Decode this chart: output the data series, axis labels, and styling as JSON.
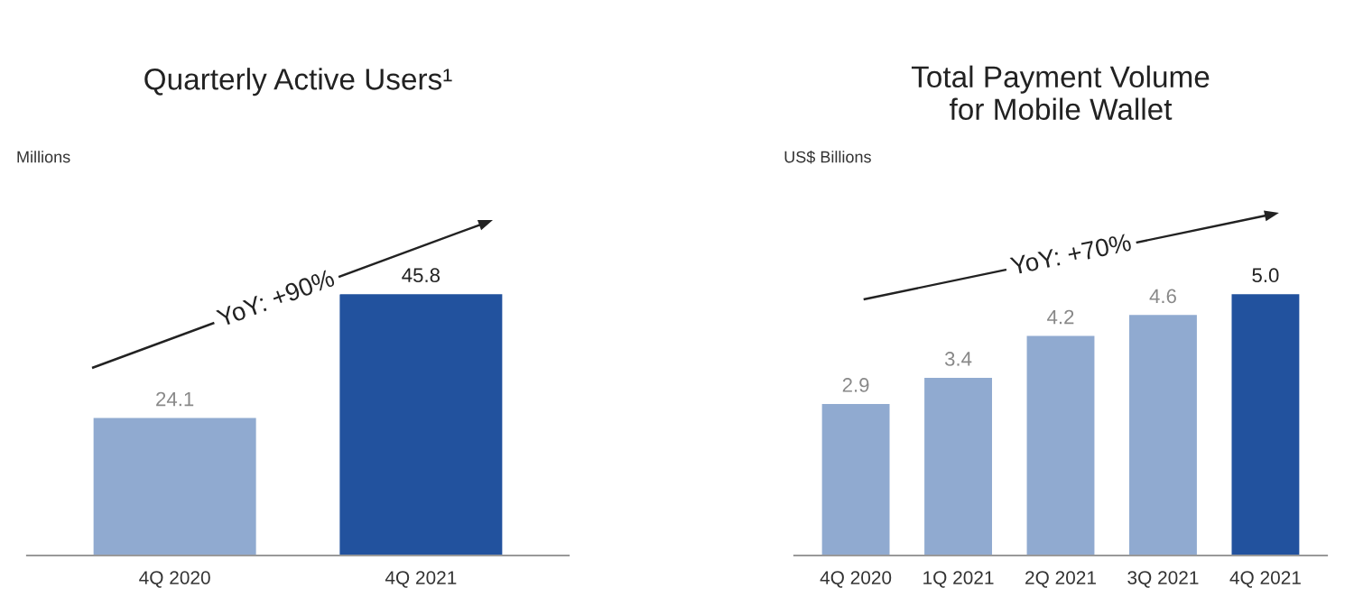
{
  "chart_data": [
    {
      "type": "bar",
      "title": "Quarterly Active Users¹",
      "ylabel": "Millions",
      "categories": [
        "4Q 2020",
        "4Q 2021"
      ],
      "values": [
        24.1,
        45.8
      ],
      "colors": [
        "#90aad0",
        "#22529e"
      ],
      "value_labels": [
        "24.1",
        "45.8"
      ],
      "annotations": [
        "YoY: +90%"
      ]
    },
    {
      "type": "bar",
      "title": "Total Payment Volume\nfor Mobile Wallet",
      "ylabel": "US$ Billions",
      "categories": [
        "4Q 2020",
        "1Q 2021",
        "2Q 2021",
        "3Q 2021",
        "4Q 2021"
      ],
      "values": [
        2.9,
        3.4,
        4.2,
        4.6,
        5.0
      ],
      "colors": [
        "#90aad0",
        "#90aad0",
        "#90aad0",
        "#90aad0",
        "#22529e"
      ],
      "value_labels": [
        "2.9",
        "3.4",
        "4.2",
        "4.6",
        "5.0"
      ],
      "annotations": [
        "YoY: +70%"
      ]
    }
  ]
}
